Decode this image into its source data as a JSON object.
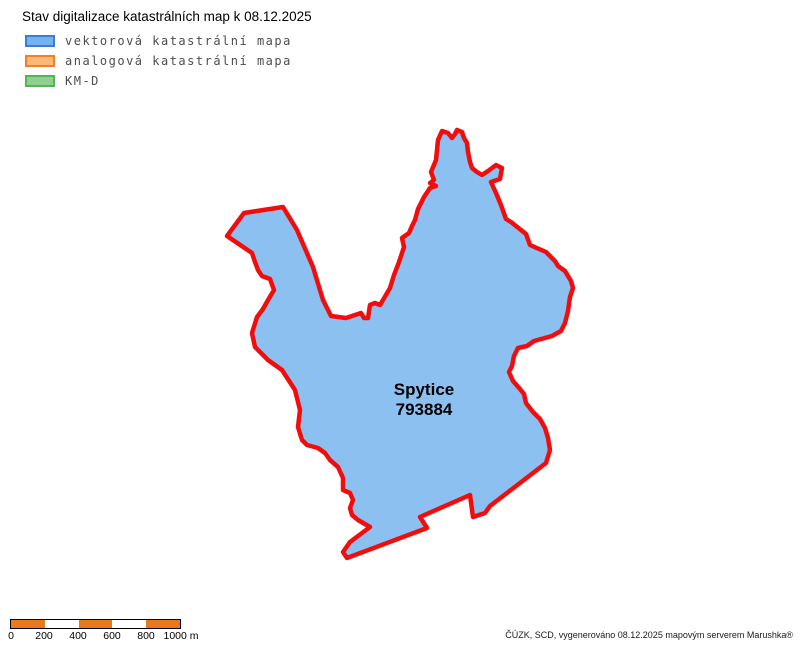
{
  "title": "Stav digitalizace katastrálních map k 08.12.2025",
  "legend": {
    "items": [
      {
        "label": "vektorová katastrální mapa",
        "fill": "#75B2F0",
        "border": "#3D7CD0"
      },
      {
        "label": "analogová katastrální mapa",
        "fill": "#FBB877",
        "border": "#F0812B"
      },
      {
        "label": "KM-D",
        "fill": "#90CF90",
        "border": "#56B456"
      }
    ]
  },
  "map": {
    "region_name": "Spytice",
    "region_code": "793884",
    "fill_color": "#8BC0F1",
    "border_color": "#F20D0D",
    "polygon_points": "438,140 442,131 448,133 452,138 455,134 457,130 462,132 464,138 467,143 468,152 470,162 472,168 477,172 482,175 488,171 496,165 502,168 500,179 491,182 496,193 501,205 506,219 511,222 526,234 530,245 546,252 555,261 558,266 565,271 571,281 573,288 570,297 568,311 565,323 561,331 552,336 534,341 527,346 518,348 514,356 512,366 509,372 513,381 520,389 524,394 526,403 533,412 540,419 545,428 548,438 550,450 546,463 490,506 485,513 473,517 470,495 420,517 427,528 347,558 343,552 350,542 370,527 358,520 352,515 350,508 353,500 350,493 343,490 343,478 338,467 330,460 325,453 318,448 307,445 302,440 298,427 300,410 295,390 282,370 268,360 255,347 252,333 257,317 263,309 268,300 274,290 270,279 262,276 258,270 255,262 252,253 227,236 244,213 283,207 297,230 313,267 323,300 331,316 346,318 361,313 364,318 368,318 370,305 375,303 380,305 383,300 390,288 394,275 399,262 404,247 402,238 409,233 412,226 415,220 418,209 424,197 430,188 436,186 430,183 434,180 431,172 436,160 437,150"
  },
  "scalebar": {
    "labels": [
      "0",
      "200",
      "400",
      "600",
      "800",
      "1000 m"
    ],
    "bar_color": "#E8791D"
  },
  "footer": "ČÚZK, SCD, vygenerováno 08.12.2025 mapovým serverem Marushka®"
}
